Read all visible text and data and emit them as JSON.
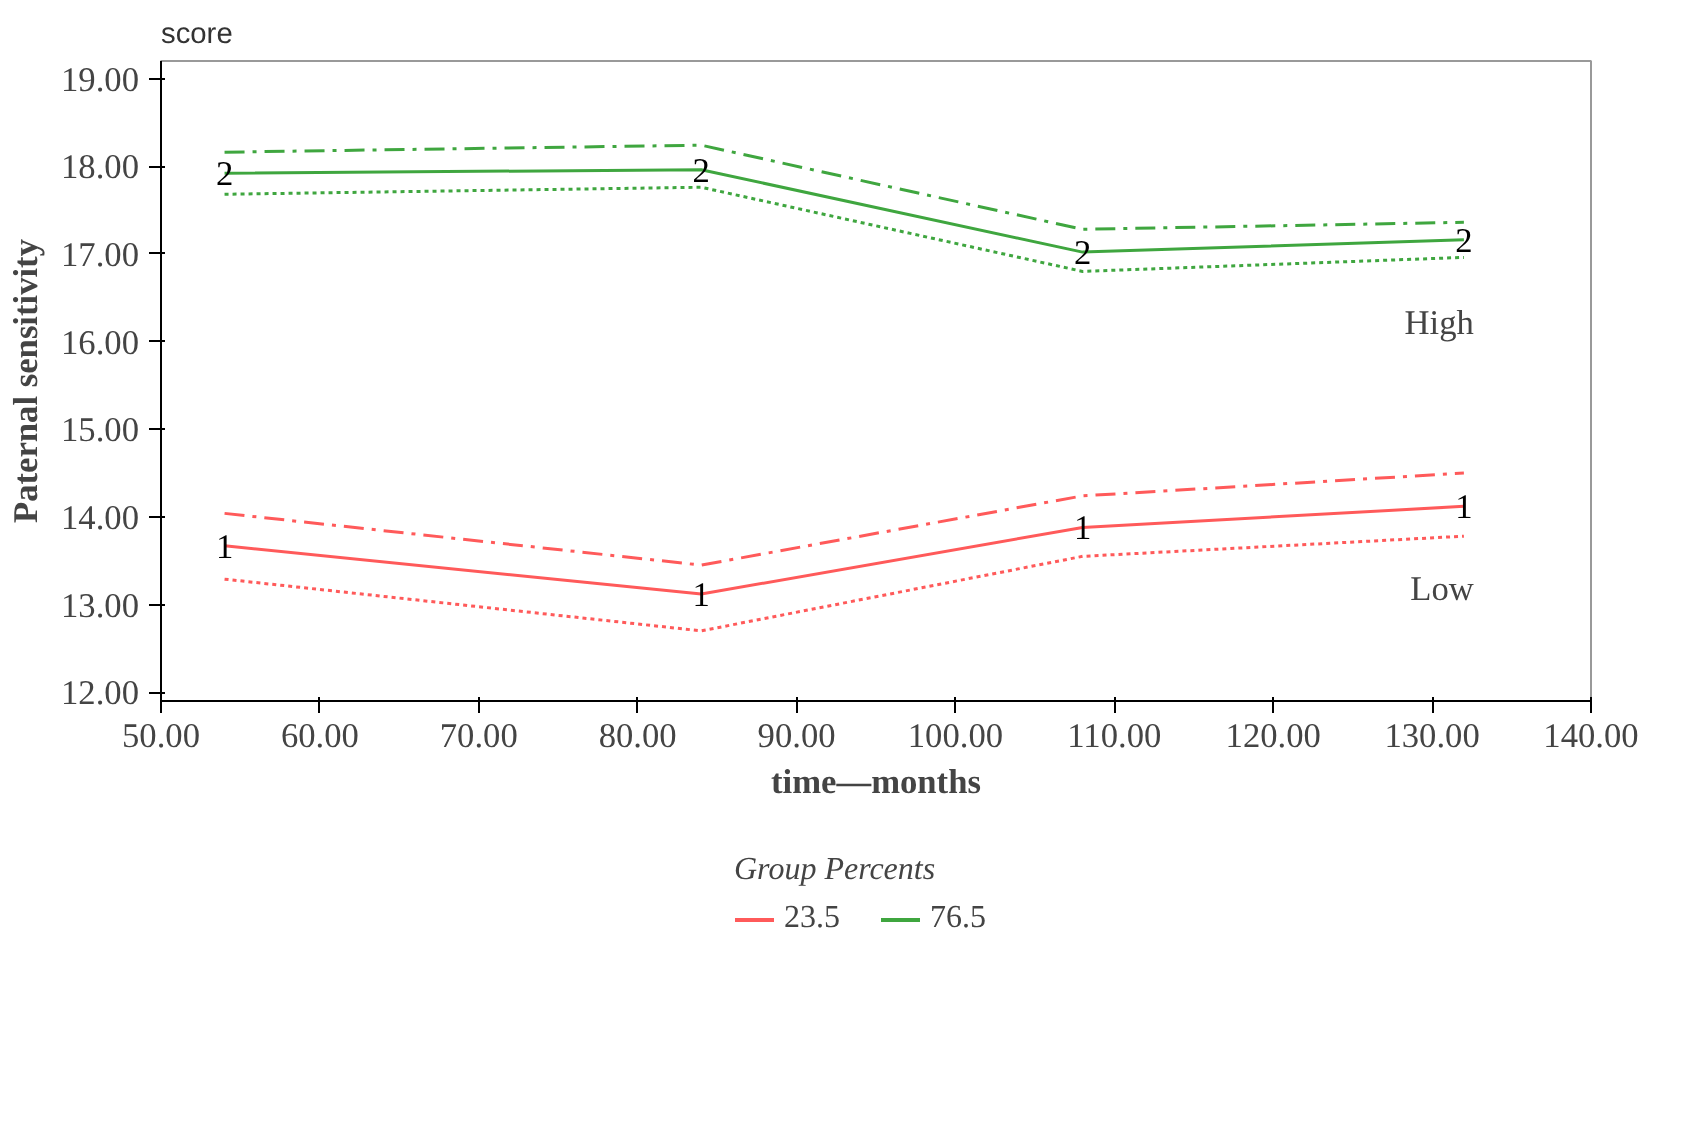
{
  "chart_data": {
    "type": "line",
    "xlabel": "time—months",
    "ylabel": "Paternal sensitivity",
    "legend_title": "Group Percents",
    "legend": "bottom",
    "grid": false,
    "x": [
      54,
      84,
      108,
      132
    ],
    "xlim": [
      50,
      140
    ],
    "ylim": [
      11.9,
      19.2
    ],
    "xticks": [
      {
        "value": 50,
        "label": "50.00"
      },
      {
        "value": 60,
        "label": "60.00"
      },
      {
        "value": 70,
        "label": "70.00"
      },
      {
        "value": 80,
        "label": "80.00"
      },
      {
        "value": 90,
        "label": "90.00"
      },
      {
        "value": 100,
        "label": "100.00"
      },
      {
        "value": 110,
        "label": "110.00"
      },
      {
        "value": 120,
        "label": "120.00"
      },
      {
        "value": 130,
        "label": "130.00"
      },
      {
        "value": 140,
        "label": "140.00"
      }
    ],
    "yticks": [
      {
        "value": 12,
        "label": "12.00"
      },
      {
        "value": 13,
        "label": "13.00"
      },
      {
        "value": 14,
        "label": "14.00"
      },
      {
        "value": 15,
        "label": "15.00"
      },
      {
        "value": 16,
        "label": "16.00"
      },
      {
        "value": 17,
        "label": "17.00"
      },
      {
        "value": 18,
        "label": "18.00"
      },
      {
        "value": 19,
        "label": "19.00"
      }
    ],
    "series": [
      {
        "name": "23.5",
        "color": "#ff5a5a",
        "line_style": "solid",
        "values": [
          13.67,
          13.12,
          13.88,
          14.12
        ]
      },
      {
        "name": "76.5",
        "color": "#3fa63f",
        "line_style": "solid",
        "values": [
          17.92,
          17.96,
          17.02,
          17.16
        ]
      },
      {
        "color": "#ff5a5a",
        "line_style": "dotted",
        "values": [
          13.29,
          12.7,
          13.55,
          13.78
        ]
      },
      {
        "color": "#3fa63f",
        "line_style": "dotted",
        "values": [
          17.68,
          17.76,
          16.8,
          16.96
        ]
      },
      {
        "color": "#ff5a5a",
        "line_style": "dashdot",
        "values": [
          14.04,
          13.45,
          14.24,
          14.5
        ]
      },
      {
        "color": "#3fa63f",
        "line_style": "dashdot",
        "values": [
          18.16,
          18.24,
          17.28,
          17.36
        ]
      }
    ],
    "annotations": [
      "score",
      "Low",
      "High",
      {
        "text": "1",
        "x": 54,
        "y": 13.67
      },
      {
        "text": "1",
        "x": 84,
        "y": 13.12
      },
      {
        "text": "1",
        "x": 108,
        "y": 13.88
      },
      {
        "text": "1",
        "x": 132,
        "y": 14.12
      },
      {
        "text": "2",
        "x": 54,
        "y": 17.92
      },
      {
        "text": "2",
        "x": 84,
        "y": 17.96
      },
      {
        "text": "2",
        "x": 108,
        "y": 17.02
      },
      {
        "text": "2",
        "x": 132,
        "y": 17.16
      }
    ]
  }
}
